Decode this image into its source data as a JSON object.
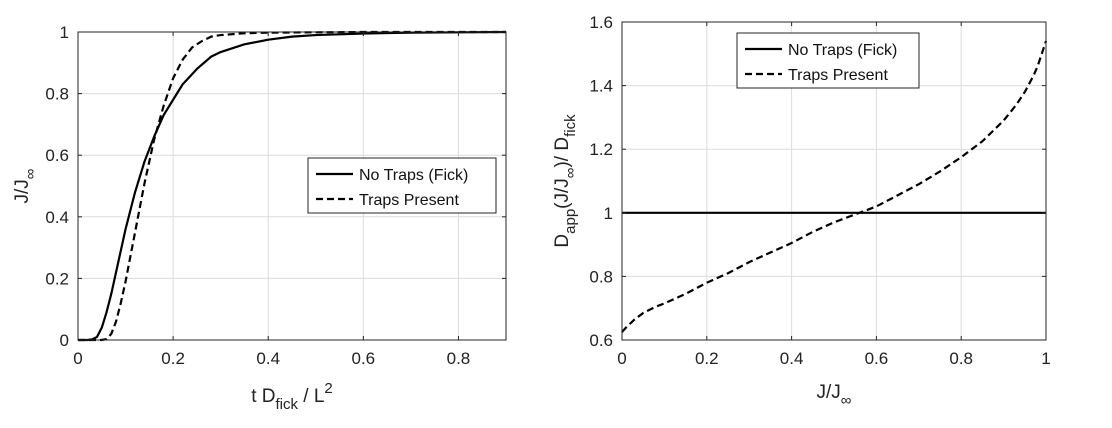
{
  "chart_data": [
    {
      "type": "line",
      "title": "",
      "xlabel": {
        "main": "t D",
        "sub": "fick",
        "tail": " / L",
        "sup": "2"
      },
      "ylabel": {
        "main": "J/J",
        "sub": "∞"
      },
      "xlim": [
        0,
        0.9
      ],
      "ylim": [
        0,
        1
      ],
      "xticks": [
        "0",
        "0.2",
        "0.4",
        "0.6",
        "0.8"
      ],
      "yticks": [
        "0",
        "0.2",
        "0.4",
        "0.6",
        "0.8",
        "1"
      ],
      "xtick_values": [
        0,
        0.2,
        0.4,
        0.6,
        0.8
      ],
      "ytick_values": [
        0,
        0.2,
        0.4,
        0.6,
        0.8,
        1
      ],
      "grid": true,
      "legend": "center-right",
      "series": [
        {
          "name": "No Traps (Fick)",
          "style": "solid",
          "x": [
            0,
            0.02,
            0.03,
            0.04,
            0.05,
            0.06,
            0.07,
            0.08,
            0.09,
            0.1,
            0.11,
            0.12,
            0.14,
            0.16,
            0.18,
            0.2,
            0.22,
            0.25,
            0.28,
            0.3,
            0.35,
            0.4,
            0.45,
            0.5,
            0.6,
            0.7,
            0.8,
            0.9
          ],
          "y": [
            0,
            0,
            0.002,
            0.01,
            0.04,
            0.09,
            0.15,
            0.22,
            0.29,
            0.36,
            0.42,
            0.48,
            0.58,
            0.66,
            0.73,
            0.78,
            0.83,
            0.88,
            0.92,
            0.935,
            0.96,
            0.975,
            0.985,
            0.99,
            0.995,
            0.998,
            0.999,
            1
          ]
        },
        {
          "name": "Traps Present",
          "style": "dashed",
          "x": [
            0,
            0.05,
            0.06,
            0.07,
            0.08,
            0.09,
            0.1,
            0.11,
            0.12,
            0.13,
            0.14,
            0.15,
            0.16,
            0.18,
            0.2,
            0.22,
            0.24,
            0.26,
            0.28,
            0.3,
            0.35,
            0.4,
            0.5,
            0.6,
            0.7,
            0.9
          ],
          "y": [
            0,
            0,
            0.003,
            0.02,
            0.06,
            0.12,
            0.19,
            0.27,
            0.35,
            0.43,
            0.51,
            0.58,
            0.65,
            0.76,
            0.85,
            0.91,
            0.95,
            0.97,
            0.985,
            0.99,
            0.996,
            0.998,
            0.999,
            1,
            1,
            1
          ]
        }
      ]
    },
    {
      "type": "line",
      "title": "",
      "xlabel": {
        "main": "J/J",
        "sub": "∞"
      },
      "ylabel": {
        "main": "D",
        "sub1": "app",
        "mid": "(J/J",
        "sub2": "∞",
        "tail": ")/ D",
        "sub3": "fick"
      },
      "xlim": [
        0,
        1
      ],
      "ylim": [
        0.6,
        1.6
      ],
      "xticks": [
        "0",
        "0.2",
        "0.4",
        "0.6",
        "0.8",
        "1"
      ],
      "yticks": [
        "0.6",
        "0.8",
        "1",
        "1.2",
        "1.4",
        "1.6"
      ],
      "xtick_values": [
        0,
        0.2,
        0.4,
        0.6,
        0.8,
        1
      ],
      "ytick_values": [
        0.6,
        0.8,
        1,
        1.2,
        1.4,
        1.6
      ],
      "grid": true,
      "legend": "top-center",
      "series": [
        {
          "name": "No Traps (Fick)",
          "style": "solid",
          "x": [
            0,
            1
          ],
          "y": [
            1,
            1
          ]
        },
        {
          "name": "Traps Present",
          "style": "dashed",
          "x": [
            0,
            0.01,
            0.03,
            0.05,
            0.08,
            0.1,
            0.15,
            0.2,
            0.25,
            0.3,
            0.35,
            0.4,
            0.45,
            0.5,
            0.55,
            0.6,
            0.65,
            0.7,
            0.75,
            0.8,
            0.85,
            0.9,
            0.93,
            0.95,
            0.97,
            0.98,
            0.99,
            1.0
          ],
          "y": [
            0.625,
            0.64,
            0.665,
            0.685,
            0.705,
            0.715,
            0.745,
            0.78,
            0.81,
            0.845,
            0.875,
            0.905,
            0.94,
            0.97,
            0.995,
            1.02,
            1.055,
            1.09,
            1.13,
            1.175,
            1.225,
            1.29,
            1.34,
            1.38,
            1.43,
            1.46,
            1.5,
            1.54
          ]
        }
      ]
    }
  ]
}
